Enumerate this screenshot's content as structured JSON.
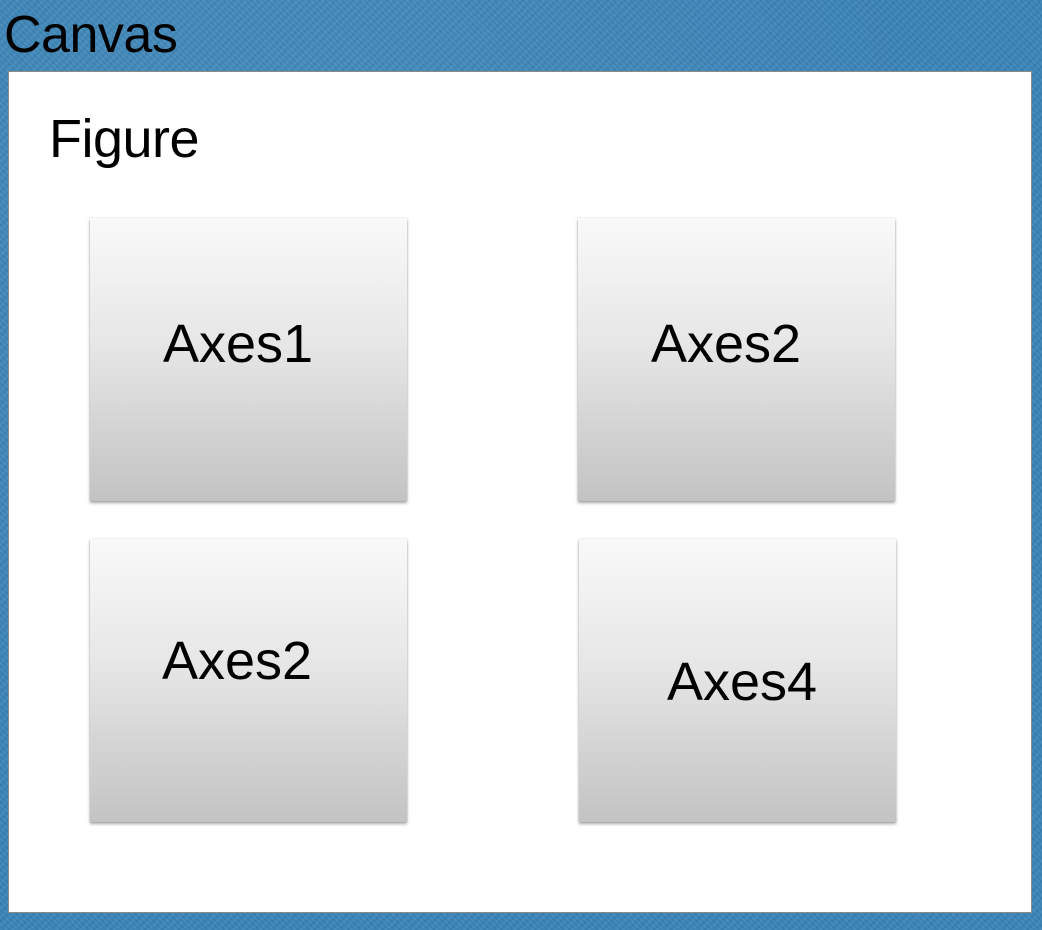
{
  "canvas": {
    "label": "Canvas",
    "background_color": "#3a84b8"
  },
  "figure": {
    "label": "Figure",
    "background_color": "#ffffff"
  },
  "axes": [
    {
      "label": "Axes1"
    },
    {
      "label": "Axes2"
    },
    {
      "label": "Axes2"
    },
    {
      "label": "Axes4"
    }
  ]
}
